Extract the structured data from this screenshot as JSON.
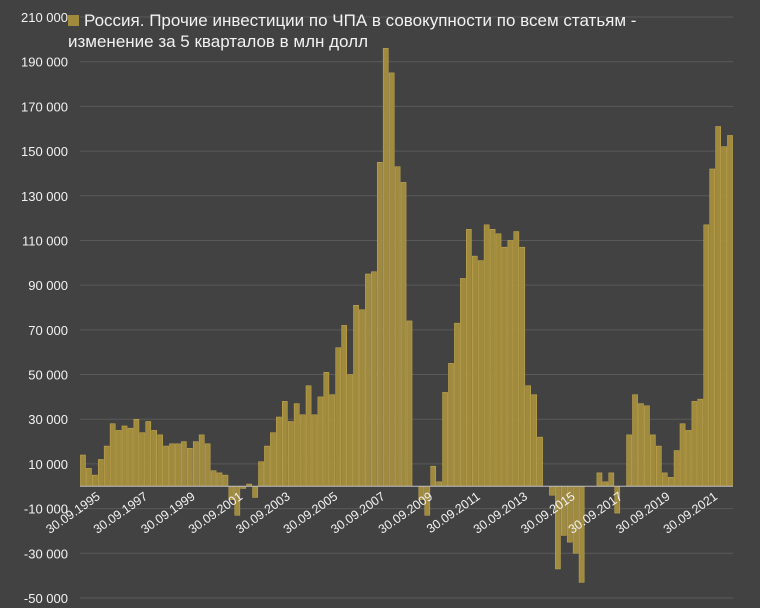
{
  "colors": {
    "background": "#424242",
    "bar": "#a08a3e",
    "bar_edge": "#c9ae52",
    "grid": "#5a5a5a",
    "text": "#f2f2f2"
  },
  "chart_data": {
    "type": "bar",
    "title": "Россия. Прочие инвестиции по ЧПА в совокупности по всем статьям - изменение за 5 кварталов в млн долл",
    "legend": {
      "show": true,
      "placement": "top-left"
    },
    "grid": true,
    "xlabel": "",
    "ylabel": "",
    "ylim": [
      -50000,
      210000
    ],
    "y_ticks": [
      210000,
      190000,
      170000,
      150000,
      130000,
      110000,
      90000,
      70000,
      50000,
      30000,
      10000,
      -10000,
      -30000,
      -50000
    ],
    "y_tick_labels": [
      "210 000",
      "190 000",
      "170 000",
      "150 000",
      "130 000",
      "110 000",
      "90 000",
      "70 000",
      "50 000",
      "30 000",
      "10 000",
      "-10 000",
      "-30 000",
      "-50 000"
    ],
    "x_tick_labels": [
      {
        "index": 0,
        "label": "30.09.1995"
      },
      {
        "index": 8,
        "label": "30.09.1997"
      },
      {
        "index": 16,
        "label": "30.09.1999"
      },
      {
        "index": 24,
        "label": "30.09.2001"
      },
      {
        "index": 32,
        "label": "30.09.2003"
      },
      {
        "index": 40,
        "label": "30.09.2005"
      },
      {
        "index": 48,
        "label": "30.09.2007"
      },
      {
        "index": 56,
        "label": "30.09.2009"
      },
      {
        "index": 64,
        "label": "30.09.2011"
      },
      {
        "index": 72,
        "label": "30.09.2013"
      },
      {
        "index": 80,
        "label": "30.09.2015"
      },
      {
        "index": 88,
        "label": "30.09.2017"
      },
      {
        "index": 96,
        "label": "30.09.2019"
      },
      {
        "index": 104,
        "label": "30.09.2021"
      }
    ],
    "series": [
      {
        "name": "Россия. Прочие инвестиции по ЧПА в совокупности по всем статьям - изменение за 5 кварталов в млн долл",
        "values": [
          14000,
          8000,
          5000,
          12000,
          18000,
          28000,
          25000,
          27000,
          26000,
          30000,
          24000,
          29000,
          25000,
          23000,
          18000,
          19000,
          19000,
          20000,
          17000,
          20000,
          23000,
          19000,
          7000,
          6000,
          5000,
          -6000,
          -13000,
          -1000,
          1000,
          -5000,
          11000,
          18000,
          24000,
          31000,
          38000,
          29000,
          37000,
          32000,
          45000,
          32000,
          40000,
          51000,
          41000,
          62000,
          72000,
          50000,
          81000,
          79000,
          95000,
          96000,
          145000,
          196000,
          185000,
          143000,
          136000,
          74000,
          0,
          -6000,
          -13000,
          9000,
          2000,
          42000,
          55000,
          73000,
          93000,
          115000,
          103000,
          101000,
          117000,
          115000,
          113000,
          107000,
          110000,
          114000,
          107000,
          45000,
          41000,
          22000,
          0,
          -4000,
          -37000,
          -22000,
          -25000,
          -30000,
          -43000,
          0,
          0,
          6000,
          2000,
          6000,
          -12000,
          0,
          23000,
          41000,
          37000,
          36000,
          23000,
          18000,
          6000,
          4000,
          16000,
          28000,
          25000,
          38000,
          39000,
          117000,
          142000,
          161000,
          152000,
          157000
        ]
      }
    ]
  }
}
